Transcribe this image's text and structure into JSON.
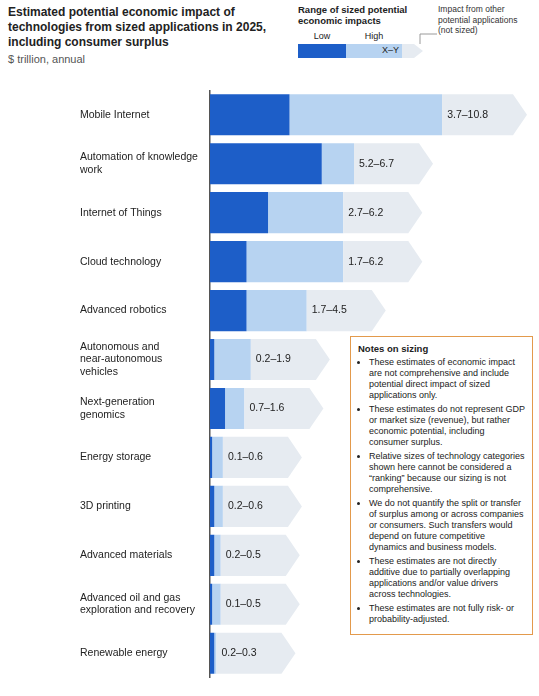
{
  "chart_data": {
    "type": "bar",
    "orientation": "horizontal",
    "title": "Estimated potential economic impact of technologies from sized applications in 2025, including consumer surplus",
    "subtitle": "$ trillion, annual",
    "categories": [
      "Mobile Internet",
      "Automation of knowledge work",
      "Internet of Things",
      "Cloud technology",
      "Advanced robotics",
      "Autonomous and near-autonomous vehicles",
      "Next-generation genomics",
      "Energy storage",
      "3D printing",
      "Advanced materials",
      "Advanced oil and gas exploration and recovery",
      "Renewable energy"
    ],
    "series": [
      {
        "name": "Low",
        "color": "#1d5ec8",
        "values": [
          3.7,
          5.2,
          2.7,
          1.7,
          1.7,
          0.2,
          0.7,
          0.1,
          0.2,
          0.2,
          0.1,
          0.2
        ]
      },
      {
        "name": "High",
        "color": "#b7d3f1",
        "values": [
          10.8,
          6.7,
          6.2,
          6.2,
          4.5,
          1.9,
          1.6,
          0.6,
          0.6,
          0.5,
          0.5,
          0.3
        ],
        "value_labels": [
          "3.7–10.8",
          "5.2–6.7",
          "2.7–6.2",
          "1.7–6.2",
          "1.7–4.5",
          "0.2–1.9",
          "0.7–1.6",
          "0.1–0.6",
          "0.2–0.6",
          "0.2–0.5",
          "0.1–0.5",
          "0.2–0.3"
        ]
      }
    ],
    "data_labels": true,
    "tick_labels": "y",
    "legend": "top right",
    "legend_title": "Range of sized potential economic impacts",
    "legend_range_label": "X–Y",
    "annotations": [
      "Impact from other potential applications (not sized)"
    ],
    "notes": {
      "title": "Notes on sizing",
      "items": [
        "These estimates of economic impact are not comprehensive and include potential direct impact of sized applications only.",
        "These estimates do not represent GDP or market size (revenue), but rather economic potential, including consumer surplus.",
        "Relative sizes of technology categories shown here cannot be considered a “ranking” because our sizing is not comprehensive.",
        "We do not quantify the split or transfer of surplus among or across companies or consumers. Such transfers would depend on future competitive dynamics and business models.",
        "These estimates are not directly additive due to partially overlapping applications and/or value drivers across technologies.",
        "These estimates are not fully risk- or probability-adjusted."
      ]
    }
  }
}
